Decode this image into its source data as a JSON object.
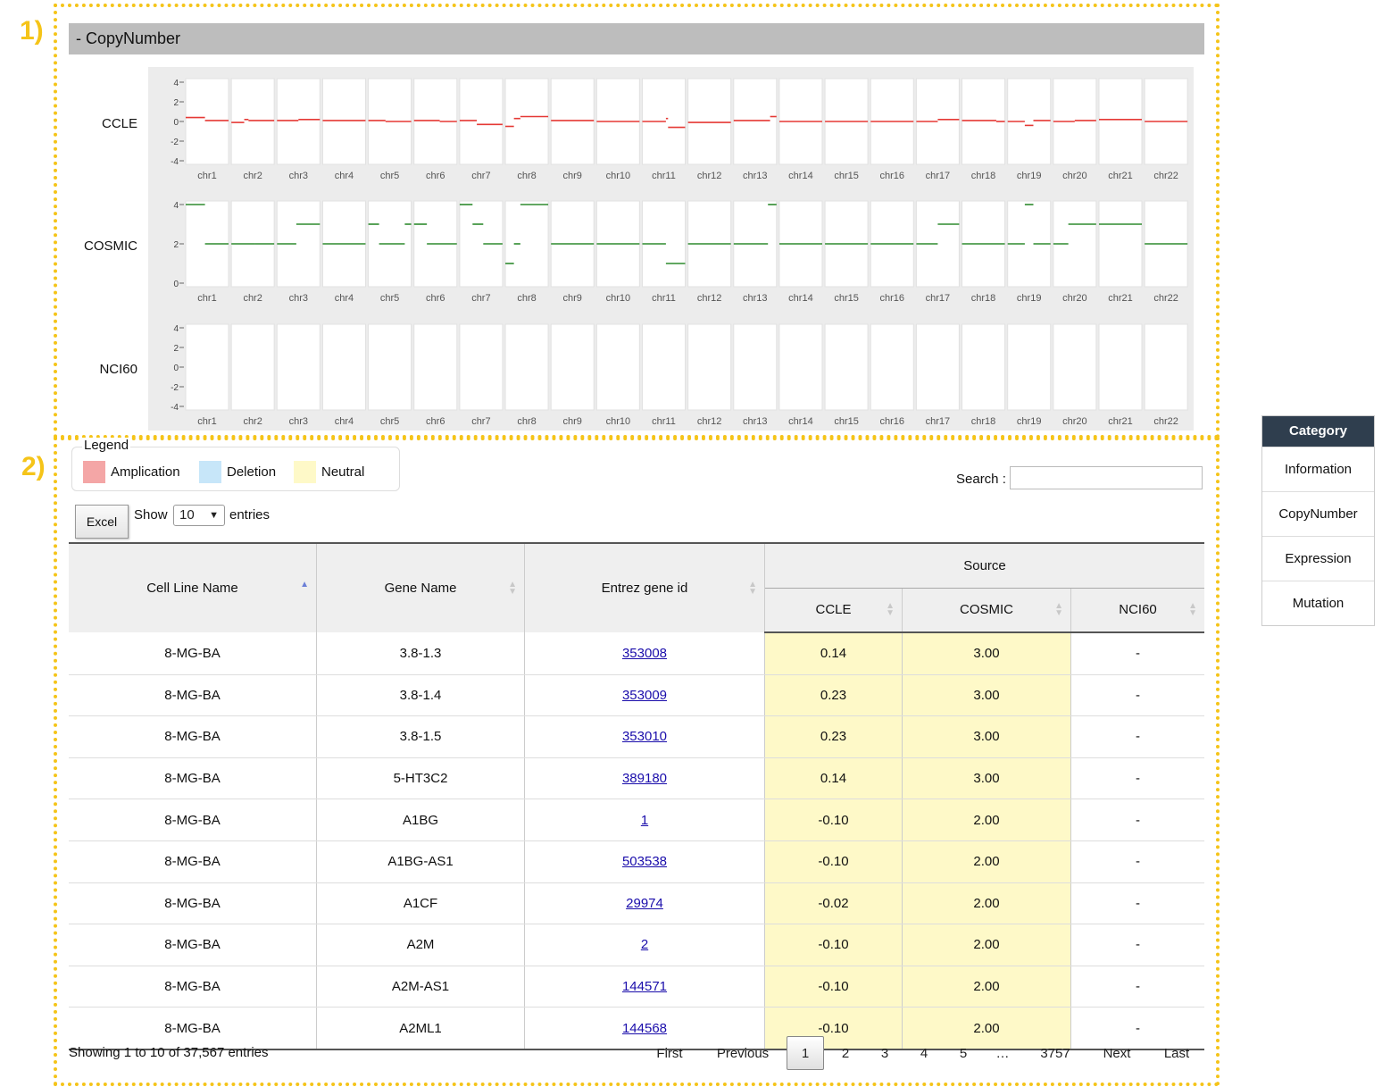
{
  "annotations": [
    "1)",
    "2)"
  ],
  "section_title": "- CopyNumber",
  "plot_rows": [
    {
      "source": "CCLE",
      "y_ticks": [
        "4",
        "2",
        "0",
        "-2",
        "-4"
      ],
      "y_range": [
        -4,
        4
      ],
      "color": "#e53935",
      "segments": [
        [
          [
            0,
            0.45,
            0.4
          ],
          [
            0.45,
            1,
            0.1
          ]
        ],
        [
          [
            0,
            0.3,
            -0.1
          ],
          [
            0.3,
            0.4,
            0.2
          ],
          [
            0.4,
            1,
            0.1
          ]
        ],
        [
          [
            0,
            0.5,
            0.1
          ],
          [
            0.5,
            1,
            0.2
          ]
        ],
        [
          [
            0,
            1,
            0.1
          ]
        ],
        [
          [
            0,
            0.4,
            0.1
          ],
          [
            0.4,
            1,
            0
          ]
        ],
        [
          [
            0,
            0.6,
            0.1
          ],
          [
            0.6,
            1,
            0
          ]
        ],
        [
          [
            0,
            0.4,
            0.1
          ],
          [
            0.4,
            1,
            -0.3
          ]
        ],
        [
          [
            0,
            0.2,
            -0.5
          ],
          [
            0.2,
            0.35,
            0.3
          ],
          [
            0.35,
            1,
            0.5
          ]
        ],
        [
          [
            0,
            1,
            0.1
          ]
        ],
        [
          [
            0,
            1,
            0
          ]
        ],
        [
          [
            0,
            0.55,
            0
          ],
          [
            0.55,
            0.6,
            0.3
          ],
          [
            0.6,
            1,
            -0.6
          ]
        ],
        [
          [
            0,
            1,
            -0.1
          ]
        ],
        [
          [
            0,
            0.85,
            0.1
          ],
          [
            0.85,
            1,
            0.5
          ]
        ],
        [
          [
            0,
            1,
            0
          ]
        ],
        [
          [
            0,
            1,
            0
          ]
        ],
        [
          [
            0,
            1,
            0
          ]
        ],
        [
          [
            0,
            0.5,
            0
          ],
          [
            0.5,
            1,
            0.2
          ]
        ],
        [
          [
            0,
            0.8,
            0.1
          ],
          [
            0.8,
            1,
            0
          ]
        ],
        [
          [
            0,
            0.4,
            0
          ],
          [
            0.4,
            0.6,
            -0.4
          ],
          [
            0.6,
            1,
            0.1
          ]
        ],
        [
          [
            0,
            0.5,
            0
          ],
          [
            0.5,
            1,
            0.1
          ]
        ],
        [
          [
            0,
            1,
            0.2
          ]
        ],
        [
          [
            0,
            1,
            0
          ]
        ]
      ]
    },
    {
      "source": "COSMIC",
      "y_ticks": [
        "4",
        "2",
        "0"
      ],
      "y_range": [
        0,
        4
      ],
      "color": "#2e8b2e",
      "segments": [
        [
          [
            0,
            0.45,
            4
          ],
          [
            0.45,
            1,
            2
          ]
        ],
        [
          [
            0,
            0.55,
            2
          ],
          [
            0.55,
            1,
            2
          ]
        ],
        [
          [
            0,
            0.45,
            2
          ],
          [
            0.45,
            1,
            3
          ]
        ],
        [
          [
            0,
            1,
            2
          ]
        ],
        [
          [
            0,
            0.25,
            3
          ],
          [
            0.25,
            0.85,
            2
          ],
          [
            0.85,
            1,
            3
          ]
        ],
        [
          [
            0,
            0.3,
            3
          ],
          [
            0.3,
            1,
            2
          ]
        ],
        [
          [
            0,
            0.3,
            4
          ],
          [
            0.3,
            0.55,
            3
          ],
          [
            0.55,
            1,
            2
          ]
        ],
        [
          [
            0,
            0.2,
            1
          ],
          [
            0.2,
            0.35,
            2
          ],
          [
            0.35,
            1,
            4
          ]
        ],
        [
          [
            0,
            1,
            2
          ]
        ],
        [
          [
            0,
            1,
            2
          ]
        ],
        [
          [
            0,
            0.55,
            2
          ],
          [
            0.55,
            1,
            1
          ]
        ],
        [
          [
            0,
            1,
            2
          ]
        ],
        [
          [
            0,
            0.8,
            2
          ],
          [
            0.8,
            1,
            4
          ]
        ],
        [
          [
            0,
            1,
            2
          ]
        ],
        [
          [
            0,
            1,
            2
          ]
        ],
        [
          [
            0,
            1,
            2
          ]
        ],
        [
          [
            0,
            0.5,
            2
          ],
          [
            0.5,
            1,
            3
          ]
        ],
        [
          [
            0,
            1,
            2
          ]
        ],
        [
          [
            0,
            0.4,
            2
          ],
          [
            0.4,
            0.6,
            4
          ],
          [
            0.6,
            1,
            2
          ]
        ],
        [
          [
            0,
            0.35,
            2
          ],
          [
            0.35,
            1,
            3
          ]
        ],
        [
          [
            0,
            1,
            3
          ]
        ],
        [
          [
            0,
            1,
            2
          ]
        ]
      ]
    },
    {
      "source": "NCI60",
      "y_ticks": [
        "4",
        "2",
        "0",
        "-2",
        "-4"
      ],
      "y_range": [
        -4,
        4
      ],
      "color": "#e53935",
      "segments": []
    }
  ],
  "chromosomes": [
    "chr1",
    "chr2",
    "chr3",
    "chr4",
    "chr5",
    "chr6",
    "chr7",
    "chr8",
    "chr9",
    "chr10",
    "chr11",
    "chr12",
    "chr13",
    "chr14",
    "chr15",
    "chr16",
    "chr17",
    "chr18",
    "chr19",
    "chr20",
    "chr21",
    "chr22"
  ],
  "legend": {
    "title": "Legend",
    "items": [
      {
        "label": "Amplication",
        "color": "#f4a6a6"
      },
      {
        "label": "Deletion",
        "color": "#c7e6f9"
      },
      {
        "label": "Neutral",
        "color": "#fef9c8"
      }
    ]
  },
  "search": {
    "label": "Search :",
    "value": ""
  },
  "excel_label": "Excel",
  "show_label": "Show",
  "page_size": "10",
  "entries_label": "entries",
  "table": {
    "headers": {
      "cell_line": "Cell Line Name",
      "gene": "Gene Name",
      "entrez": "Entrez gene id",
      "source": "Source",
      "ccle": "CCLE",
      "cosmic": "COSMIC",
      "nci60": "NCI60"
    },
    "rows": [
      {
        "cell_line": "8-MG-BA",
        "gene": "3.8-1.3",
        "entrez": "353008",
        "ccle": "0.14",
        "cosmic": "3.00",
        "nci60": "-"
      },
      {
        "cell_line": "8-MG-BA",
        "gene": "3.8-1.4",
        "entrez": "353009",
        "ccle": "0.23",
        "cosmic": "3.00",
        "nci60": "-"
      },
      {
        "cell_line": "8-MG-BA",
        "gene": "3.8-1.5",
        "entrez": "353010",
        "ccle": "0.23",
        "cosmic": "3.00",
        "nci60": "-"
      },
      {
        "cell_line": "8-MG-BA",
        "gene": "5-HT3C2",
        "entrez": "389180",
        "ccle": "0.14",
        "cosmic": "3.00",
        "nci60": "-"
      },
      {
        "cell_line": "8-MG-BA",
        "gene": "A1BG",
        "entrez": "1",
        "ccle": "-0.10",
        "cosmic": "2.00",
        "nci60": "-"
      },
      {
        "cell_line": "8-MG-BA",
        "gene": "A1BG-AS1",
        "entrez": "503538",
        "ccle": "-0.10",
        "cosmic": "2.00",
        "nci60": "-"
      },
      {
        "cell_line": "8-MG-BA",
        "gene": "A1CF",
        "entrez": "29974",
        "ccle": "-0.02",
        "cosmic": "2.00",
        "nci60": "-"
      },
      {
        "cell_line": "8-MG-BA",
        "gene": "A2M",
        "entrez": "2",
        "ccle": "-0.10",
        "cosmic": "2.00",
        "nci60": "-"
      },
      {
        "cell_line": "8-MG-BA",
        "gene": "A2M-AS1",
        "entrez": "144571",
        "ccle": "-0.10",
        "cosmic": "2.00",
        "nci60": "-"
      },
      {
        "cell_line": "8-MG-BA",
        "gene": "A2ML1",
        "entrez": "144568",
        "ccle": "-0.10",
        "cosmic": "2.00",
        "nci60": "-"
      }
    ]
  },
  "info_text": "Showing 1 to 10 of 37,567 entries",
  "pagination": {
    "first": "First",
    "previous": "Previous",
    "pages": [
      "1",
      "2",
      "3",
      "4",
      "5"
    ],
    "ellipsis": "…",
    "last_page": "3757",
    "next": "Next",
    "last": "Last",
    "current": "1"
  },
  "category": {
    "title": "Category",
    "items": [
      "Information",
      "CopyNumber",
      "Expression",
      "Mutation"
    ]
  }
}
